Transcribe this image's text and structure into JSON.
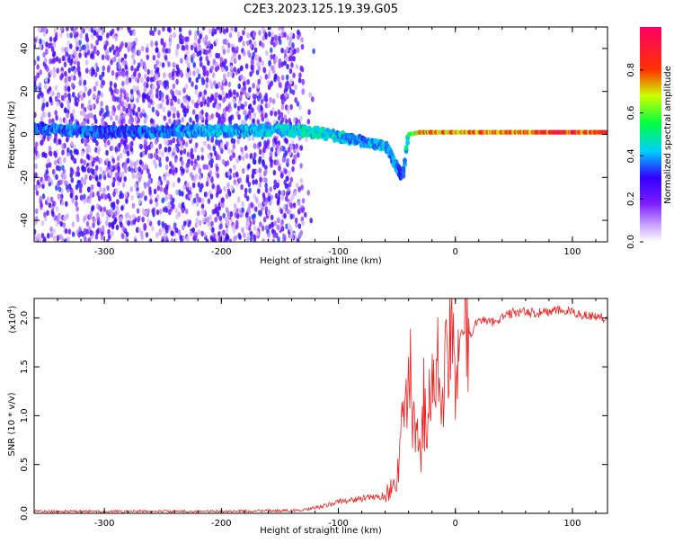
{
  "title": "C2E3.2023.125.19.39.G05",
  "colors": {
    "snr_line": "#ee2222",
    "colorbar": [
      "#ffffff",
      "#8a2be2",
      "#3300ff",
      "#00ccff",
      "#00ff44",
      "#ffff00",
      "#ff3300",
      "#ff0066"
    ]
  },
  "chart_data": [
    {
      "type": "heatmap",
      "title": "C2E3.2023.125.19.39.G05",
      "xlabel": "Height of straight line (km)",
      "ylabel": "Frequency (Hz)",
      "colorbar_label": "Normalized spectral amplitude",
      "xlim": [
        -360,
        130
      ],
      "ylim": [
        -50,
        50
      ],
      "xticks": [
        -300,
        -200,
        -100,
        0,
        100
      ],
      "yticks": [
        -40,
        -20,
        0,
        20,
        40
      ],
      "colorbar_ticks": [
        0.0,
        0.2,
        0.4,
        0.6,
        0.8
      ],
      "colorbar_range": [
        0.0,
        1.0
      ],
      "noise_region_x": [
        -360,
        -130
      ],
      "signal_trace": {
        "x": [
          -360,
          -330,
          -300,
          -150,
          -120,
          -100,
          -80,
          -60,
          -45,
          -40,
          -30,
          0,
          50,
          100,
          130
        ],
        "frequency": [
          3,
          2,
          1,
          2,
          1,
          -1,
          -3,
          -5,
          -20,
          0,
          1,
          1,
          1,
          1,
          1
        ],
        "amplitude": [
          0.4,
          0.45,
          0.4,
          0.5,
          0.55,
          0.5,
          0.45,
          0.5,
          0.4,
          0.6,
          0.85,
          0.9,
          0.95,
          1.0,
          0.95
        ]
      }
    },
    {
      "type": "line",
      "xlabel": "Height of straight line (km)",
      "ylabel": "SNR (10 * v/v)",
      "yscale_label": "(x10",
      "yscale_exp": "4",
      "yscale_close": ")",
      "xlim": [
        -360,
        130
      ],
      "ylim": [
        0.0,
        2.2
      ],
      "xticks": [
        -300,
        -200,
        -100,
        0,
        100
      ],
      "yticks": [
        0.0,
        0.5,
        1.0,
        1.5,
        2.0
      ],
      "series": [
        {
          "x": [
            -360,
            -300,
            -200,
            -130,
            -110,
            -100,
            -80,
            -60,
            -50,
            -45,
            -40,
            -35,
            -30,
            -28,
            -20,
            -15,
            -10,
            -5,
            0,
            5,
            10,
            20,
            30,
            50,
            70,
            90,
            110,
            130
          ],
          "values": [
            0.02,
            0.02,
            0.02,
            0.03,
            0.08,
            0.12,
            0.15,
            0.18,
            0.35,
            0.85,
            1.5,
            0.9,
            0.5,
            1.1,
            1.2,
            1.45,
            1.35,
            1.6,
            1.55,
            1.9,
            1.75,
            2.0,
            1.95,
            2.06,
            2.05,
            2.08,
            2.03,
            2.0
          ]
        }
      ]
    }
  ]
}
